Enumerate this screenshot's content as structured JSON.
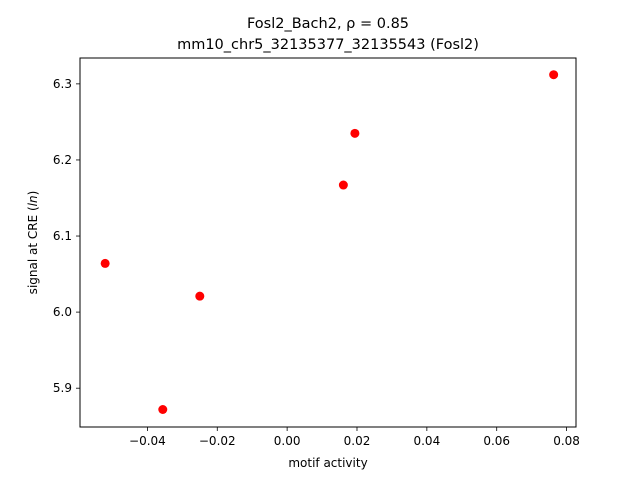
{
  "chart_data": {
    "type": "scatter",
    "title_line1": "Fosl2_Bach2, ρ = 0.85",
    "title_line2": "mm10_chr5_32135377_32135543 (Fosl2)",
    "xlabel": "motif activity",
    "ylabel": "signal at CRE (ln)",
    "xlim": [
      -0.0593,
      0.0827
    ],
    "ylim": [
      5.849,
      6.334
    ],
    "x_ticks": [
      -0.04,
      -0.02,
      0.0,
      0.02,
      0.04,
      0.06,
      0.08
    ],
    "x_tick_labels": [
      "−0.04",
      "−0.02",
      "0.00",
      "0.02",
      "0.04",
      "0.06",
      "0.08"
    ],
    "y_ticks": [
      5.9,
      6.0,
      6.1,
      6.2,
      6.3
    ],
    "y_tick_labels": [
      "5.9",
      "6.0",
      "6.1",
      "6.2",
      "6.3"
    ],
    "grid": false,
    "marker_color": "#ff0000",
    "points": [
      {
        "x": -0.0521,
        "y": 6.064
      },
      {
        "x": -0.0356,
        "y": 5.872
      },
      {
        "x": -0.025,
        "y": 6.021
      },
      {
        "x": 0.0161,
        "y": 6.167
      },
      {
        "x": 0.0194,
        "y": 6.235
      },
      {
        "x": 0.0763,
        "y": 6.312
      }
    ]
  }
}
